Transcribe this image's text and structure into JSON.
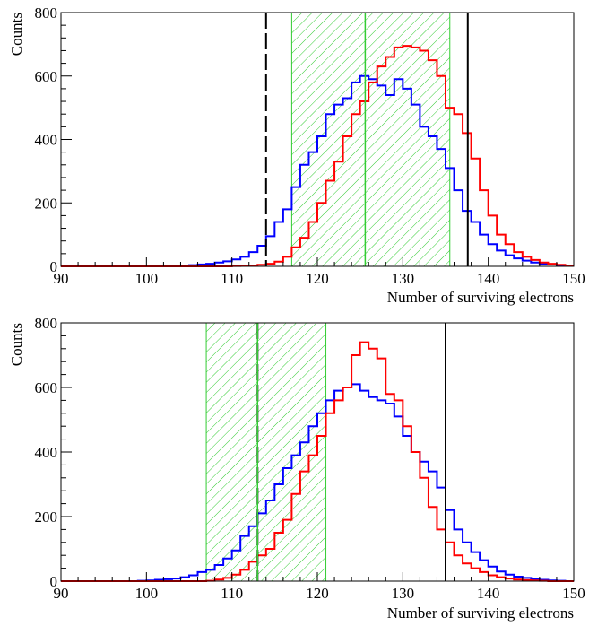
{
  "chart_data": [
    {
      "type": "histogram",
      "xlabel": "Number of surviving electrons",
      "ylabel": "Counts",
      "xlim": [
        90,
        150
      ],
      "ylim": [
        0,
        800
      ],
      "xticks": [
        90,
        100,
        110,
        120,
        130,
        140,
        150
      ],
      "yticks": [
        0,
        200,
        400,
        600,
        800
      ],
      "bin_width": 1,
      "bin_start": 90,
      "series": [
        {
          "color": "#0000ff",
          "values": [
            0,
            0,
            0,
            0,
            0,
            0,
            0,
            0,
            0,
            0,
            0,
            1,
            1,
            2,
            3,
            4,
            6,
            8,
            12,
            16,
            22,
            30,
            45,
            65,
            95,
            140,
            180,
            250,
            320,
            360,
            410,
            480,
            510,
            530,
            580,
            600,
            590,
            570,
            540,
            590,
            560,
            510,
            440,
            410,
            370,
            310,
            240,
            175,
            140,
            100,
            70,
            50,
            35,
            25,
            18,
            12,
            8,
            6,
            4,
            2
          ]
        },
        {
          "color": "#ff0000",
          "values": [
            0,
            0,
            0,
            0,
            0,
            0,
            0,
            0,
            0,
            0,
            0,
            0,
            0,
            0,
            0,
            0,
            0,
            0,
            0,
            0,
            1,
            2,
            3,
            5,
            8,
            15,
            30,
            60,
            90,
            140,
            200,
            270,
            330,
            410,
            480,
            520,
            580,
            630,
            660,
            690,
            695,
            690,
            680,
            650,
            600,
            500,
            480,
            420,
            340,
            240,
            160,
            100,
            70,
            45,
            30,
            20,
            12,
            8,
            5,
            2
          ]
        }
      ],
      "vlines": [
        {
          "x": 114,
          "style": "dashed",
          "color": "#000000"
        },
        {
          "x": 137.6,
          "style": "solid",
          "color": "#000000"
        },
        {
          "x": 125.6,
          "style": "solid",
          "color": "#33cc33"
        }
      ],
      "band": {
        "x0": 117,
        "x1": 135.5,
        "color": "#33cc33",
        "fill": "hatched"
      }
    },
    {
      "type": "histogram",
      "xlabel": "Number of surviving electrons",
      "ylabel": "Counts",
      "xlim": [
        90,
        150
      ],
      "ylim": [
        0,
        800
      ],
      "xticks": [
        90,
        100,
        110,
        120,
        130,
        140,
        150
      ],
      "yticks": [
        0,
        200,
        400,
        600,
        800
      ],
      "bin_width": 1,
      "bin_start": 90,
      "series": [
        {
          "color": "#0000ff",
          "values": [
            0,
            0,
            0,
            0,
            0,
            0,
            0,
            0,
            0,
            1,
            2,
            4,
            6,
            8,
            12,
            18,
            28,
            35,
            50,
            70,
            95,
            140,
            170,
            210,
            250,
            300,
            350,
            390,
            430,
            480,
            520,
            560,
            590,
            600,
            610,
            590,
            570,
            560,
            550,
            510,
            450,
            400,
            370,
            340,
            290,
            220,
            160,
            120,
            90,
            65,
            45,
            30,
            20,
            14,
            10,
            6,
            4,
            2,
            1,
            0
          ]
        },
        {
          "color": "#ff0000",
          "values": [
            0,
            0,
            0,
            0,
            0,
            0,
            0,
            0,
            0,
            0,
            0,
            0,
            0,
            0,
            0,
            0,
            0,
            1,
            5,
            10,
            20,
            35,
            60,
            80,
            100,
            150,
            190,
            270,
            340,
            390,
            450,
            520,
            560,
            600,
            700,
            740,
            720,
            690,
            580,
            560,
            480,
            400,
            320,
            230,
            160,
            120,
            80,
            55,
            40,
            28,
            18,
            12,
            8,
            5,
            3,
            2,
            1,
            0,
            0,
            0
          ]
        }
      ],
      "vlines": [
        {
          "x": 113,
          "style": "dashed",
          "color": "#000000"
        },
        {
          "x": 135,
          "style": "solid",
          "color": "#000000"
        },
        {
          "x": 113,
          "style": "solid",
          "color": "#33cc33"
        }
      ],
      "band": {
        "x0": 107,
        "x1": 121,
        "color": "#33cc33",
        "fill": "hatched"
      }
    }
  ]
}
